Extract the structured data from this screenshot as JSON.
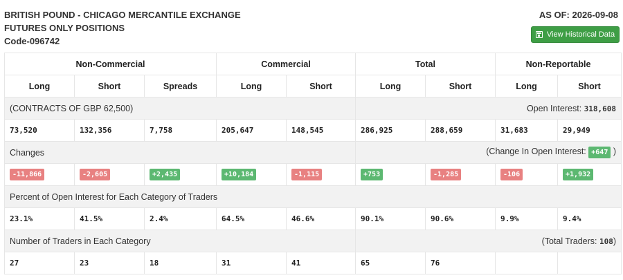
{
  "header": {
    "title_line1": "BRITISH POUND - CHICAGO MERCANTILE EXCHANGE",
    "title_line2": "FUTURES ONLY POSITIONS",
    "code": "Code-096742",
    "as_of": "AS OF: 2026-09-08",
    "history_button": "View Historical Data"
  },
  "groups": [
    "Non-Commercial",
    "Commercial",
    "Total",
    "Non-Reportable"
  ],
  "columns": [
    "Long",
    "Short",
    "Spreads",
    "Long",
    "Short",
    "Long",
    "Short",
    "Long",
    "Short"
  ],
  "contracts": {
    "label": "(CONTRACTS OF GBP 62,500)",
    "oi_label": "Open Interest:",
    "oi_value": "318,608",
    "values": [
      "73,520",
      "132,356",
      "7,758",
      "205,647",
      "148,545",
      "286,925",
      "288,659",
      "31,683",
      "29,949"
    ]
  },
  "changes": {
    "label": "Changes",
    "coi_prefix": "(Change In Open Interest:",
    "coi_value": "+647",
    "coi_suffix": ")",
    "values": [
      "-11,866",
      "-2,605",
      "+2,435",
      "+10,184",
      "-1,115",
      "+753",
      "-1,285",
      "-106",
      "+1,932"
    ]
  },
  "percent": {
    "label": "Percent of Open Interest for Each Category of Traders",
    "values": [
      "23.1%",
      "41.5%",
      "2.4%",
      "64.5%",
      "46.6%",
      "90.1%",
      "90.6%",
      "9.9%",
      "9.4%"
    ]
  },
  "traders": {
    "label": "Number of Traders in Each Category",
    "total_prefix": "(Total Traders:",
    "total_value": "108",
    "total_suffix": ")",
    "values": [
      "27",
      "23",
      "18",
      "31",
      "41",
      "65",
      "76",
      "",
      ""
    ]
  },
  "colors": {
    "positive": "#5cb871",
    "negative": "#e88181",
    "button": "#3e9e45",
    "section_bg": "#f2f2f2"
  }
}
